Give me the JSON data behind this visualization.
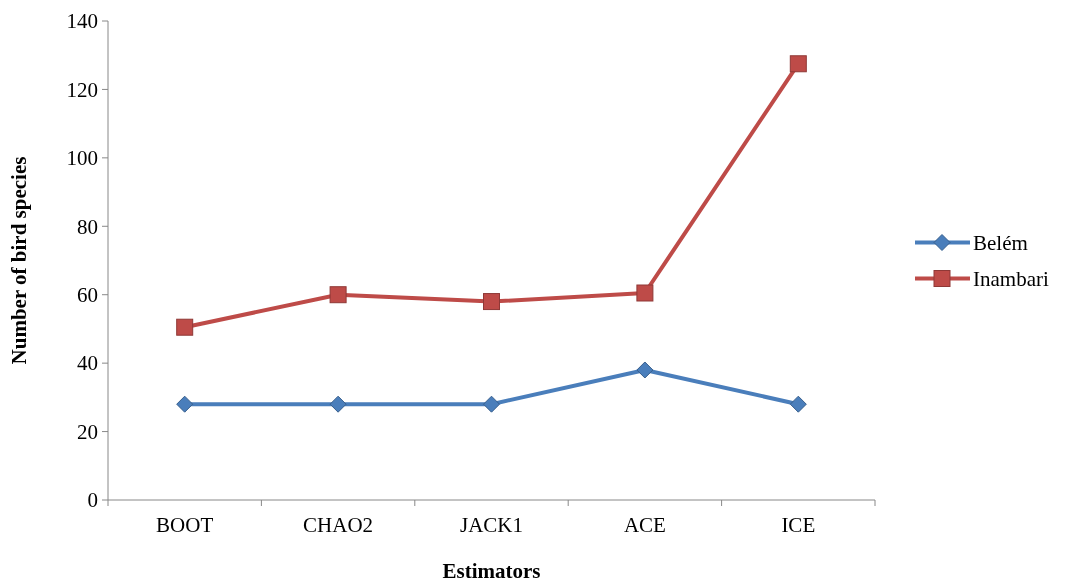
{
  "chart_data": {
    "type": "line",
    "xlabel": "Estimators",
    "ylabel": "Number of bird species",
    "categories": [
      "BOOT",
      "CHAO2",
      "JACK1",
      "ACE",
      "ICE"
    ],
    "series": [
      {
        "name": "Belém",
        "color": "#4a7ebb",
        "marker": "diamond",
        "values": [
          28,
          28,
          28,
          38,
          28
        ]
      },
      {
        "name": "Inambari",
        "color": "#be4b48",
        "marker": "square",
        "values": [
          50.5,
          60,
          58,
          60.5,
          127.5
        ]
      }
    ],
    "ylim": [
      0,
      140
    ],
    "yticks": [
      0,
      20,
      40,
      60,
      80,
      100,
      120,
      140
    ],
    "grid": false,
    "legend": "right",
    "line_style": "solid"
  }
}
